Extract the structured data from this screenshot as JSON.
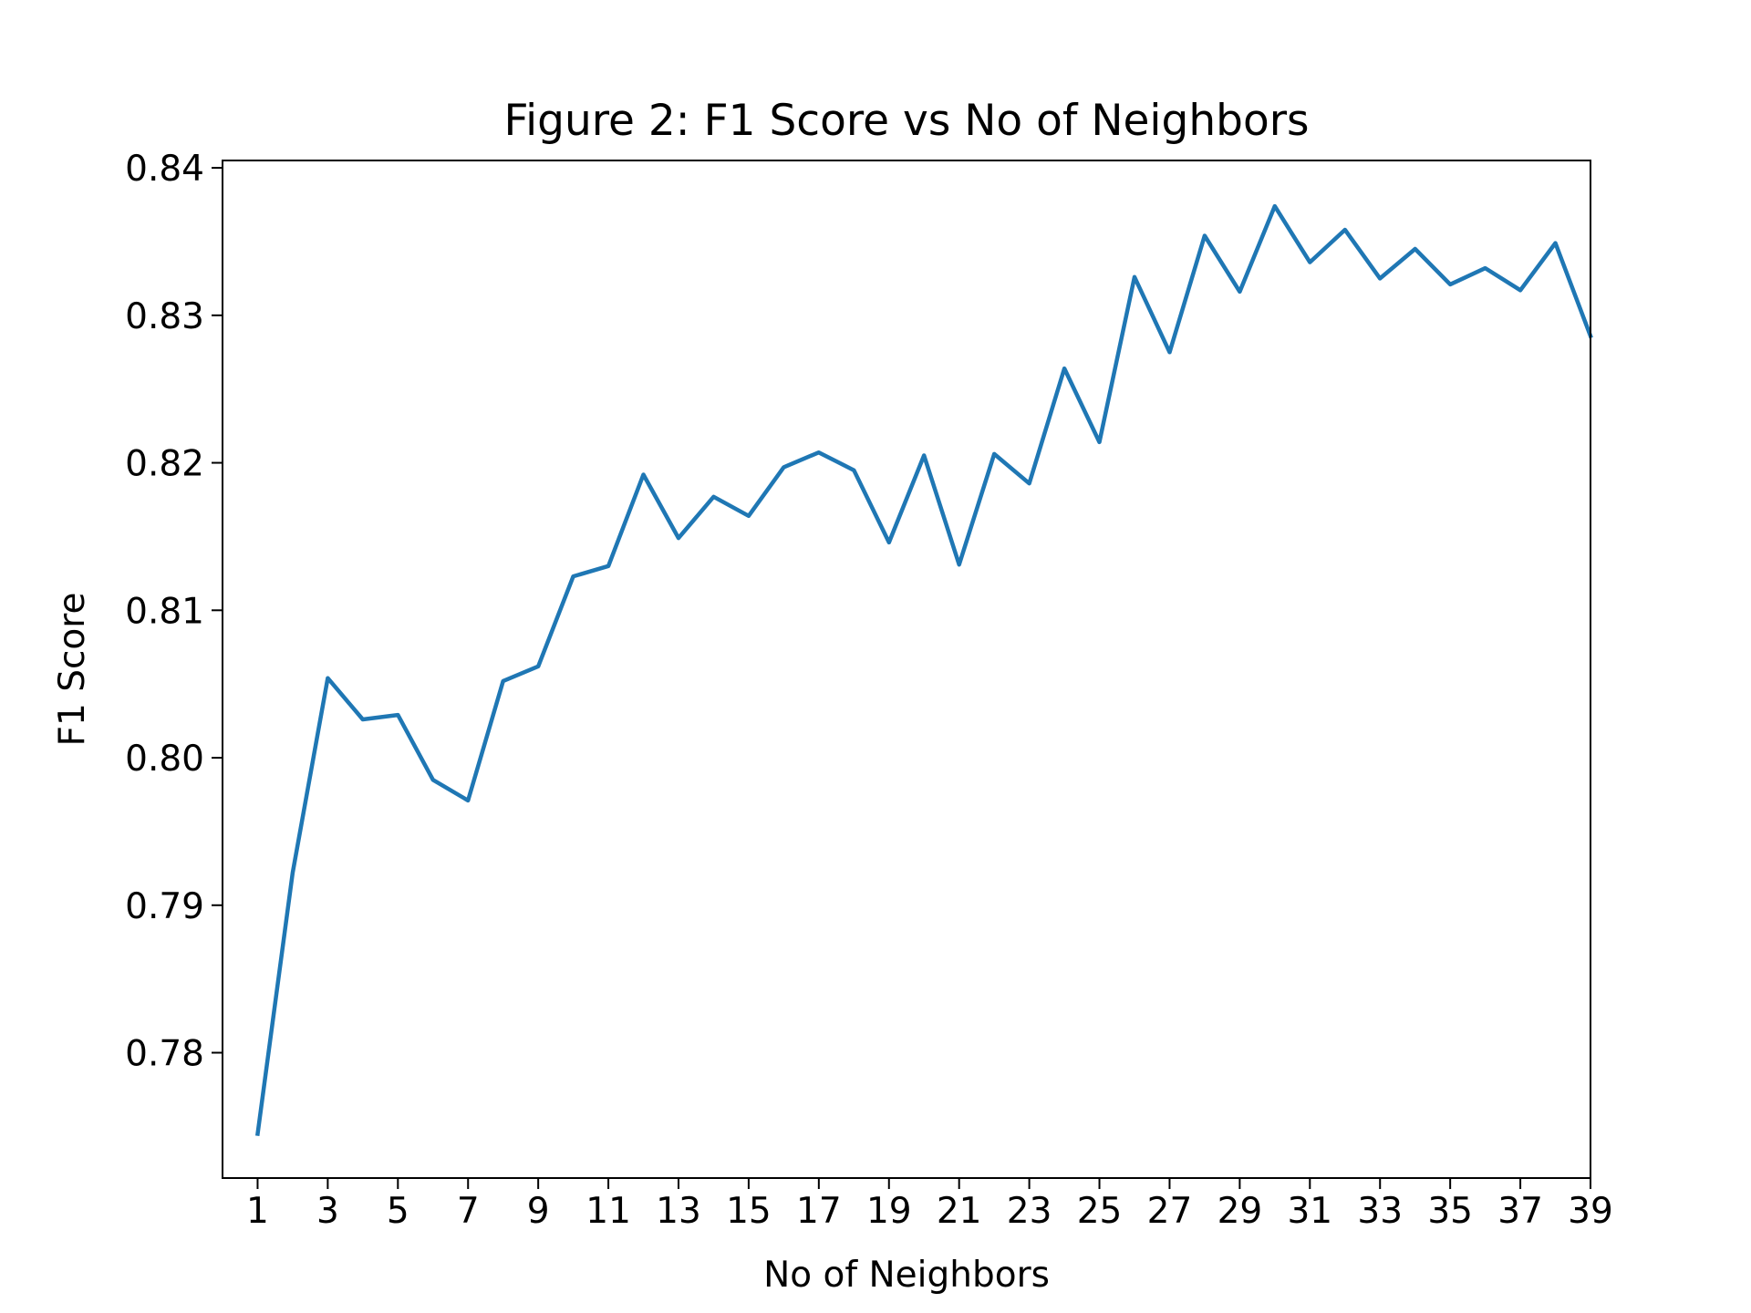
{
  "chart_data": {
    "type": "line",
    "title": "Figure 2: F1 Score vs No of Neighbors",
    "xlabel": "No of Neighbors",
    "ylabel": "F1 Score",
    "xlim": [
      0,
      39
    ],
    "ylim": [
      0.7715,
      0.8405
    ],
    "x_ticks": [
      1,
      3,
      5,
      7,
      9,
      11,
      13,
      15,
      17,
      19,
      21,
      23,
      25,
      27,
      29,
      31,
      33,
      35,
      37,
      39
    ],
    "x_tick_labels": [
      "1",
      "3",
      "5",
      "7",
      "9",
      "11",
      "13",
      "15",
      "17",
      "19",
      "21",
      "23",
      "25",
      "27",
      "29",
      "31",
      "33",
      "35",
      "37",
      "39"
    ],
    "y_ticks": [
      0.78,
      0.79,
      0.8,
      0.81,
      0.82,
      0.83,
      0.84
    ],
    "y_tick_labels": [
      "0.78",
      "0.79",
      "0.80",
      "0.81",
      "0.82",
      "0.83",
      "0.84"
    ],
    "grid": false,
    "line_color": "#1f77b4",
    "series": [
      {
        "x": [
          1,
          2,
          3,
          4,
          5,
          6,
          7,
          8,
          9,
          10,
          11,
          12,
          13,
          14,
          15,
          16,
          17,
          18,
          19,
          20,
          21,
          22,
          23,
          24,
          25,
          26,
          27,
          28,
          29,
          30,
          31,
          32,
          33,
          34,
          35,
          36,
          37,
          38,
          39
        ],
        "values": [
          0.7745,
          0.7922,
          0.8054,
          0.8026,
          0.8029,
          0.7985,
          0.7971,
          0.8052,
          0.8062,
          0.8123,
          0.813,
          0.8192,
          0.8149,
          0.8177,
          0.8164,
          0.8197,
          0.8207,
          0.8195,
          0.8146,
          0.8205,
          0.8131,
          0.8206,
          0.8186,
          0.8264,
          0.8214,
          0.8326,
          0.8275,
          0.8354,
          0.8316,
          0.8374,
          0.8336,
          0.8358,
          0.8325,
          0.8345,
          0.8321,
          0.8332,
          0.8317,
          0.8349,
          0.8286
        ]
      }
    ]
  }
}
